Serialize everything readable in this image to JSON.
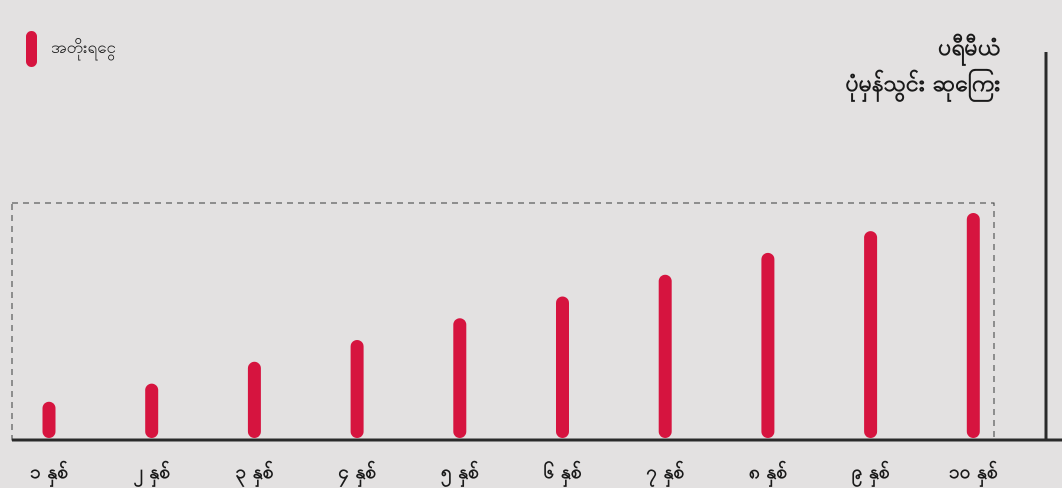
{
  "legend": {
    "label": "အတိုးရငွေ",
    "color": "#d6143f"
  },
  "title": {
    "line1": "ပရီမီယံ",
    "line2": "ပုံမှန်သွင်း ဆုကြေး"
  },
  "chart_data": {
    "type": "bar",
    "title": "ပရီမီယံ ပုံမှန်သွင်း ဆုကြေး",
    "categories": [
      "၁ နှစ်",
      "၂ နှစ်",
      "၃ နှစ်",
      "၄ နှစ်",
      "၅ နှစ်",
      "၆ နှစ်",
      "၇ နှစ်",
      "၈ နှစ်",
      "၉ နှစ်",
      "၁၀ နှစ်"
    ],
    "series": [
      {
        "name": "အတိုးရငွေ",
        "values": [
          1.0,
          1.5,
          2.1,
          2.7,
          3.3,
          3.9,
          4.5,
          5.1,
          5.7,
          6.2
        ],
        "color": "#d6143f"
      }
    ],
    "xlabel": "",
    "ylabel": "",
    "grid": false,
    "legend": "top-left"
  }
}
